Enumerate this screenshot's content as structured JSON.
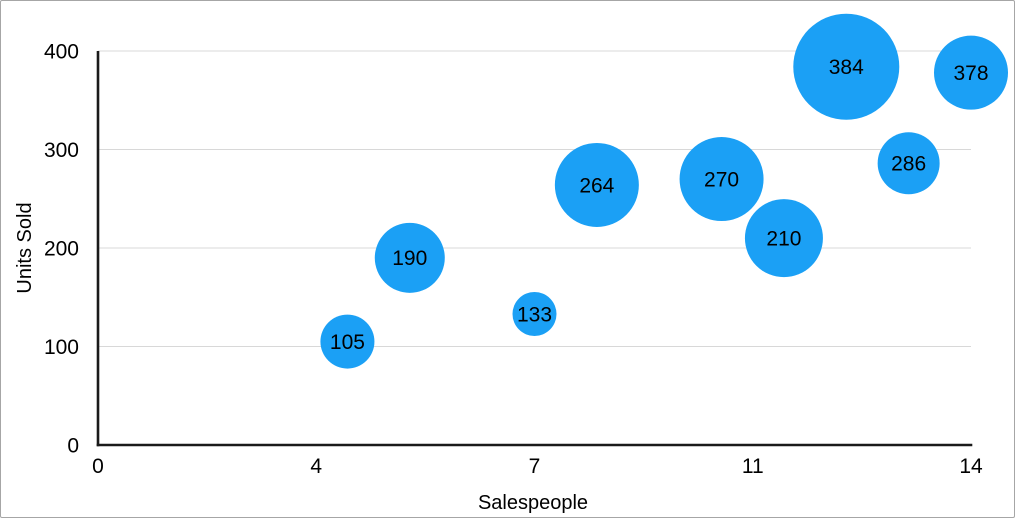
{
  "figure": {
    "background_color": "#ffffff",
    "border_color": "#a6a6a6"
  },
  "chart_data": {
    "type": "scatter",
    "subtype": "bubble",
    "title": "",
    "xlabel": "Salespeople",
    "ylabel": "Units Sold",
    "xlim": [
      0,
      14
    ],
    "ylim": [
      0,
      400
    ],
    "x_tick_labels": [
      "0",
      "4",
      "7",
      "11",
      "14"
    ],
    "y_tick_labels": [
      "0",
      "100",
      "200",
      "300",
      "400"
    ],
    "y_tick_values": [
      0,
      100,
      200,
      300,
      400
    ],
    "grid": "horizontal",
    "legend": "none",
    "bubble_color": "#1BA0F5",
    "axis_color": "#1a1a1a",
    "gridline_color": "#d8d8d8",
    "label_color": "#000000",
    "points": [
      {
        "x": 4,
        "y": 105,
        "label": "105",
        "r": 27
      },
      {
        "x": 5,
        "y": 190,
        "label": "190",
        "r": 35
      },
      {
        "x": 7,
        "y": 133,
        "label": "133",
        "r": 22
      },
      {
        "x": 8,
        "y": 264,
        "label": "264",
        "r": 42
      },
      {
        "x": 10,
        "y": 270,
        "label": "270",
        "r": 42
      },
      {
        "x": 11,
        "y": 210,
        "label": "210",
        "r": 39
      },
      {
        "x": 12,
        "y": 384,
        "label": "384",
        "r": 53
      },
      {
        "x": 13,
        "y": 286,
        "label": "286",
        "r": 31
      },
      {
        "x": 14,
        "y": 378,
        "label": "378",
        "r": 37
      }
    ]
  }
}
